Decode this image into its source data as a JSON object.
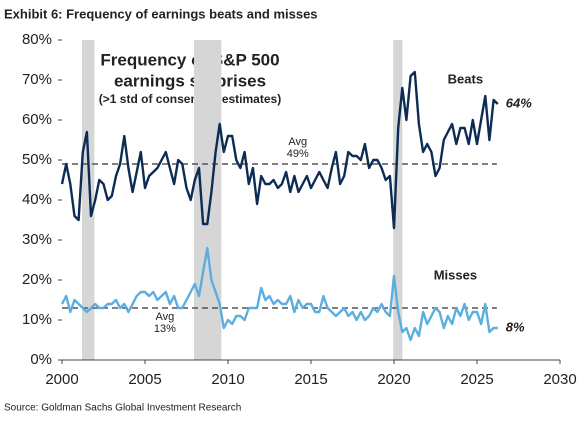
{
  "chart_data": {
    "type": "line",
    "title": "Exhibit 6: Frequency of earnings beats and misses",
    "inset_title": [
      "Frequency of S&P 500",
      "earnings surprises",
      "(>1 std of consensus estimates)"
    ],
    "source": "Source: Goldman Sachs Global Investment Research",
    "xlim": [
      2000,
      2030
    ],
    "xticks": [
      2000,
      2005,
      2010,
      2015,
      2020,
      2025,
      2030
    ],
    "ylim": [
      0,
      80
    ],
    "yticks": [
      {
        "value": 0,
        "label": "0%"
      },
      {
        "value": 10,
        "label": "10%"
      },
      {
        "value": 20,
        "label": "20%"
      },
      {
        "value": 30,
        "label": "30%"
      },
      {
        "value": 40,
        "label": "40%"
      },
      {
        "value": 50,
        "label": "50%"
      },
      {
        "value": 60,
        "label": "60%"
      },
      {
        "value": 70,
        "label": "70%"
      },
      {
        "value": 80,
        "label": "80%"
      }
    ],
    "grid": false,
    "recessions": [
      [
        2001.2,
        2001.95
      ],
      [
        2007.95,
        2009.6
      ],
      [
        2019.95,
        2020.5
      ]
    ],
    "reference_lines": [
      {
        "value": 49,
        "label": [
          "Avg",
          "49%"
        ]
      },
      {
        "value": 13,
        "label": [
          "Avg",
          "13%"
        ]
      }
    ],
    "x": [
      2000,
      2000.25,
      2000.5,
      2000.75,
      2001,
      2001.25,
      2001.5,
      2001.75,
      2002,
      2002.25,
      2002.5,
      2002.75,
      2003,
      2003.25,
      2003.5,
      2003.75,
      2004,
      2004.25,
      2004.5,
      2004.75,
      2005,
      2005.25,
      2005.5,
      2005.75,
      2006,
      2006.25,
      2006.5,
      2006.75,
      2007,
      2007.25,
      2007.5,
      2007.75,
      2008,
      2008.25,
      2008.5,
      2008.75,
      2009,
      2009.25,
      2009.5,
      2009.75,
      2010,
      2010.25,
      2010.5,
      2010.75,
      2011,
      2011.25,
      2011.5,
      2011.75,
      2012,
      2012.25,
      2012.5,
      2012.75,
      2013,
      2013.25,
      2013.5,
      2013.75,
      2014,
      2014.25,
      2014.5,
      2014.75,
      2015,
      2015.25,
      2015.5,
      2015.75,
      2016,
      2016.25,
      2016.5,
      2016.75,
      2017,
      2017.25,
      2017.5,
      2017.75,
      2018,
      2018.25,
      2018.5,
      2018.75,
      2019,
      2019.25,
      2019.5,
      2019.75,
      2020,
      2020.25,
      2020.5,
      2020.75,
      2021,
      2021.25,
      2021.5,
      2021.75,
      2022,
      2022.25,
      2022.5,
      2022.75,
      2023,
      2023.25,
      2023.5,
      2023.75,
      2024,
      2024.25,
      2024.5,
      2024.75,
      2025,
      2025.25,
      2025.5,
      2025.75,
      2026,
      2026.25
    ],
    "series": [
      {
        "name": "Beats",
        "color": "#0d2c54",
        "end_label": "64%",
        "values": [
          44,
          49,
          44,
          36,
          35,
          52,
          57,
          36,
          40,
          45,
          44,
          40,
          41,
          46,
          49,
          56,
          48,
          42,
          47,
          52,
          43,
          46,
          47,
          48,
          50,
          52,
          48,
          44,
          50,
          49,
          43,
          40,
          45,
          48,
          34,
          34,
          42,
          52,
          59,
          52,
          56,
          56,
          50,
          48,
          52,
          44,
          48,
          39,
          46,
          44,
          44,
          45,
          43,
          44,
          47,
          42,
          46,
          42,
          44,
          46,
          43,
          45,
          47,
          45,
          43,
          48,
          52,
          44,
          46,
          52,
          51,
          51,
          50,
          54,
          48,
          50,
          50,
          48,
          45,
          46,
          33,
          58,
          68,
          60,
          71,
          72,
          59,
          52,
          54,
          52,
          46,
          48,
          55,
          57,
          59,
          54,
          58,
          58,
          54,
          60,
          54,
          60,
          66,
          55,
          65,
          64
        ]
      },
      {
        "name": "Misses",
        "color": "#5aaee0",
        "end_label": "8%",
        "values": [
          14,
          16,
          12,
          15,
          14,
          13,
          12,
          13,
          14,
          13,
          13,
          14,
          14,
          15,
          13,
          14,
          12,
          14,
          16,
          17,
          17,
          16,
          17,
          15,
          16,
          17,
          14,
          16,
          13,
          13,
          15,
          17,
          19,
          16,
          22,
          28,
          20,
          17,
          14,
          8,
          10,
          9,
          11,
          11,
          10,
          13,
          13,
          13,
          18,
          15,
          16,
          14,
          15,
          14,
          14,
          16,
          12,
          15,
          13,
          14,
          14,
          12,
          12,
          16,
          13,
          12,
          11,
          12,
          13,
          11,
          12,
          10,
          12,
          10,
          11,
          13,
          12,
          14,
          12,
          11,
          21,
          12,
          7,
          8,
          5,
          8,
          6,
          12,
          9,
          11,
          13,
          12,
          8,
          11,
          9,
          13,
          11,
          14,
          10,
          12,
          12,
          9,
          14,
          7,
          8,
          8
        ]
      }
    ]
  }
}
